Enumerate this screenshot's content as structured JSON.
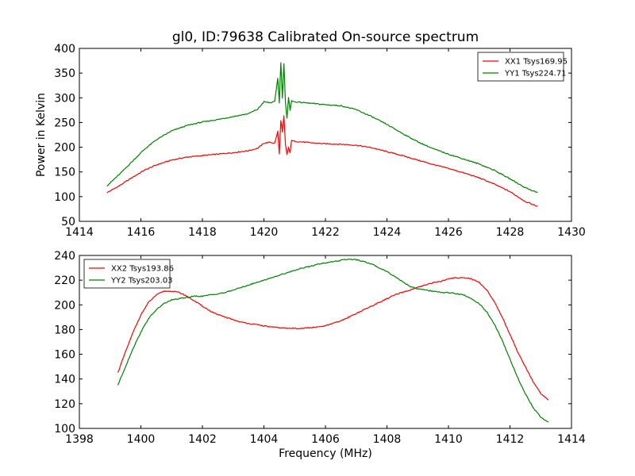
{
  "figure": {
    "title": "gl0, ID:79638 Calibrated On-source spectrum",
    "colors": {
      "red": "#ff0000",
      "green": "#008000"
    }
  },
  "chart_data": [
    {
      "type": "line",
      "title": "gl0, ID:79638 Calibrated On-source spectrum",
      "xlabel": "",
      "ylabel": "Power in Kelvin",
      "xlim": [
        1414,
        1430
      ],
      "ylim": [
        50,
        400
      ],
      "xticks": [
        1414,
        1416,
        1418,
        1420,
        1422,
        1424,
        1426,
        1428,
        1430
      ],
      "yticks": [
        50,
        100,
        150,
        200,
        250,
        300,
        350,
        400
      ],
      "grid": false,
      "legend": "top-right",
      "series": [
        {
          "name": "XX1 Tsys169.95",
          "color": "#ff0000",
          "x": [
            1414.9,
            1415.3,
            1415.7,
            1416.1,
            1416.5,
            1417.0,
            1417.5,
            1418.0,
            1418.5,
            1419.0,
            1419.5,
            1419.8,
            1420.0,
            1420.2,
            1420.35,
            1420.45,
            1420.5,
            1420.55,
            1420.6,
            1420.65,
            1420.7,
            1420.75,
            1420.8,
            1420.85,
            1420.9,
            1420.95,
            1421.0,
            1421.5,
            1422.0,
            1422.5,
            1423.0,
            1423.5,
            1424.0,
            1424.5,
            1425.0,
            1425.5,
            1426.0,
            1426.5,
            1427.0,
            1427.5,
            1428.0,
            1428.5,
            1428.9
          ],
          "values": [
            108,
            122,
            138,
            153,
            164,
            174,
            180,
            183,
            186,
            189,
            193,
            198,
            208,
            210,
            208,
            232,
            186,
            255,
            230,
            263,
            205,
            185,
            200,
            188,
            215,
            212,
            212,
            209,
            207,
            206,
            204,
            199,
            191,
            183,
            174,
            165,
            157,
            148,
            138,
            125,
            110,
            90,
            80
          ]
        },
        {
          "name": "YY1 Tsys224.71",
          "color": "#008000",
          "x": [
            1414.9,
            1415.3,
            1415.7,
            1416.1,
            1416.5,
            1417.0,
            1417.5,
            1418.0,
            1418.5,
            1419.0,
            1419.5,
            1419.8,
            1420.0,
            1420.2,
            1420.35,
            1420.45,
            1420.5,
            1420.55,
            1420.6,
            1420.65,
            1420.7,
            1420.75,
            1420.8,
            1420.85,
            1420.9,
            1420.95,
            1421.0,
            1421.5,
            1422.0,
            1422.5,
            1423.0,
            1423.5,
            1424.0,
            1424.5,
            1425.0,
            1425.5,
            1426.0,
            1426.5,
            1427.0,
            1427.5,
            1428.0,
            1428.5,
            1428.9
          ],
          "values": [
            122,
            145,
            170,
            195,
            215,
            233,
            244,
            251,
            256,
            262,
            268,
            277,
            292,
            290,
            292,
            340,
            290,
            372,
            300,
            370,
            290,
            258,
            300,
            275,
            295,
            292,
            292,
            289,
            286,
            284,
            276,
            262,
            246,
            228,
            211,
            197,
            186,
            176,
            166,
            153,
            136,
            118,
            108
          ]
        }
      ]
    },
    {
      "type": "line",
      "title": "",
      "xlabel": "Frequency (MHz)",
      "ylabel": "",
      "xlim": [
        1398,
        1414
      ],
      "ylim": [
        100,
        240
      ],
      "xticks": [
        1398,
        1400,
        1402,
        1404,
        1406,
        1408,
        1410,
        1412,
        1414
      ],
      "yticks": [
        100,
        120,
        140,
        160,
        180,
        200,
        220,
        240
      ],
      "grid": false,
      "legend": "top-left",
      "series": [
        {
          "name": "XX2 Tsys193.86",
          "color": "#ff0000",
          "x": [
            1399.25,
            1399.5,
            1399.75,
            1400.0,
            1400.25,
            1400.5,
            1400.75,
            1401.0,
            1401.25,
            1401.5,
            1401.75,
            1402.0,
            1402.25,
            1402.5,
            1402.75,
            1403.0,
            1403.25,
            1403.5,
            1403.75,
            1404.0,
            1404.25,
            1404.5,
            1404.75,
            1405.0,
            1405.25,
            1405.5,
            1405.75,
            1406.0,
            1406.25,
            1406.5,
            1406.75,
            1407.0,
            1407.25,
            1407.5,
            1407.75,
            1408.0,
            1408.25,
            1408.5,
            1408.75,
            1409.0,
            1409.25,
            1409.5,
            1409.75,
            1410.0,
            1410.25,
            1410.5,
            1410.75,
            1411.0,
            1411.25,
            1411.5,
            1411.75,
            1412.0,
            1412.25,
            1412.5,
            1412.75,
            1413.0,
            1413.25
          ],
          "values": [
            145,
            162,
            178,
            192,
            202,
            208,
            211,
            211,
            210,
            207,
            203,
            199,
            195,
            192,
            190,
            188,
            186,
            185,
            184,
            183,
            182,
            181.5,
            181,
            181,
            181,
            181.5,
            182,
            183,
            185,
            187,
            190,
            193,
            196,
            199,
            202,
            205,
            208,
            210,
            212,
            214,
            216,
            218,
            219,
            221,
            222,
            222,
            221,
            218,
            212,
            202,
            190,
            176,
            162,
            150,
            138,
            128,
            123
          ]
        },
        {
          "name": "YY2 Tsys203.03",
          "color": "#008000",
          "x": [
            1399.25,
            1399.5,
            1399.75,
            1400.0,
            1400.25,
            1400.5,
            1400.75,
            1401.0,
            1401.25,
            1401.5,
            1401.75,
            1402.0,
            1402.25,
            1402.5,
            1402.75,
            1403.0,
            1403.25,
            1403.5,
            1403.75,
            1404.0,
            1404.25,
            1404.5,
            1404.75,
            1405.0,
            1405.25,
            1405.5,
            1405.75,
            1406.0,
            1406.25,
            1406.5,
            1406.75,
            1407.0,
            1407.25,
            1407.5,
            1407.75,
            1408.0,
            1408.25,
            1408.5,
            1408.75,
            1409.0,
            1409.25,
            1409.5,
            1409.75,
            1410.0,
            1410.25,
            1410.5,
            1410.75,
            1411.0,
            1411.25,
            1411.5,
            1411.75,
            1412.0,
            1412.25,
            1412.5,
            1412.75,
            1413.0,
            1413.25
          ],
          "values": [
            135,
            150,
            165,
            178,
            189,
            196,
            201,
            204,
            205,
            206,
            207,
            207,
            208,
            209,
            210,
            212,
            214,
            216,
            218,
            220,
            222,
            224,
            226,
            228,
            230,
            231,
            233,
            234,
            235,
            236,
            237,
            236.5,
            235,
            233,
            230,
            227,
            223,
            219,
            215,
            213,
            212,
            211,
            210,
            210,
            209,
            208,
            205,
            201,
            194,
            184,
            171,
            156,
            141,
            128,
            117,
            109,
            105
          ]
        }
      ]
    }
  ]
}
